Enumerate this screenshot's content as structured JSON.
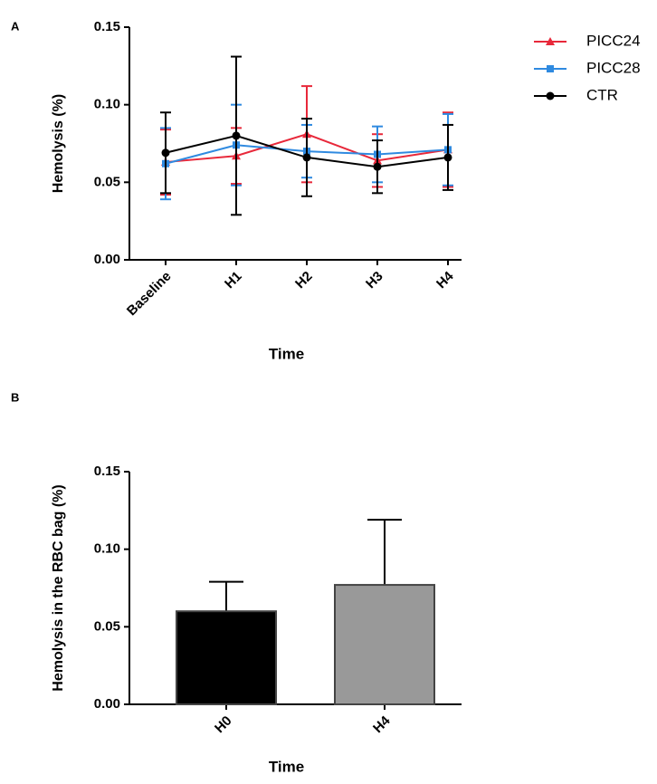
{
  "chart_data": [
    {
      "type": "line",
      "panel_label": "A",
      "y_label": "Hemolysis (%)",
      "x_label": "Time",
      "categories": [
        "Baseline",
        "H1",
        "H2",
        "H3",
        "H4"
      ],
      "ylim": [
        0,
        0.15
      ],
      "yticks": [
        {
          "value": 0,
          "label": "0.00"
        },
        0.05,
        {
          "value": 0.1,
          "label": "0.10"
        },
        0.15
      ],
      "legend": "right",
      "series": [
        {
          "name": "PICC24",
          "color": "#e8283a",
          "marker": "triangle",
          "values": [
            0.063,
            0.067,
            0.081,
            0.064,
            0.071
          ],
          "errors": [
            0.021,
            0.018,
            0.031,
            0.017,
            0.024
          ]
        },
        {
          "name": "PICC28",
          "color": "#2f8ae0",
          "marker": "square",
          "values": [
            0.062,
            0.074,
            0.07,
            0.068,
            0.071
          ],
          "errors": [
            0.023,
            0.026,
            0.017,
            0.018,
            0.023
          ]
        },
        {
          "name": "CTR",
          "color": "#000000",
          "marker": "circle",
          "values": [
            0.069,
            0.08,
            0.066,
            0.06,
            0.066
          ],
          "errors": [
            0.026,
            0.051,
            0.025,
            0.017,
            0.021
          ]
        }
      ]
    },
    {
      "type": "bar",
      "panel_label": "B",
      "y_label": "Hemolysis in the RBC bag (%)",
      "x_label": "Time",
      "categories": [
        "H0",
        "H4"
      ],
      "ylim": [
        0,
        0.15
      ],
      "yticks": [
        {
          "value": 0,
          "label": "0.00"
        },
        0.05,
        {
          "value": 0.1,
          "label": "0.10"
        },
        0.15
      ],
      "colors": [
        "#000000",
        "#999999"
      ],
      "values": [
        0.06,
        0.077
      ],
      "errors": [
        0.019,
        0.042
      ]
    }
  ]
}
